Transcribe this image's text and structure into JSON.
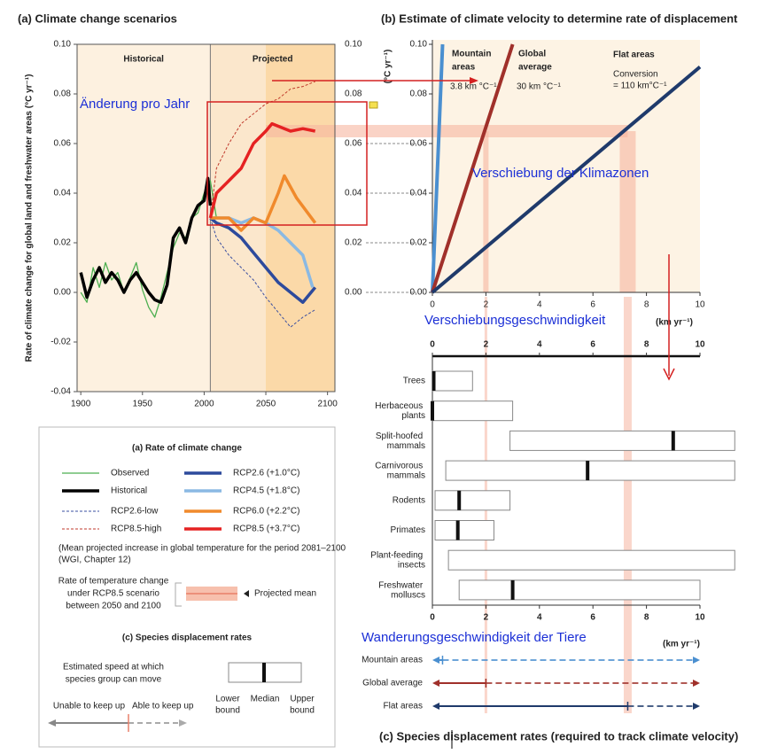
{
  "chart_data": [
    {
      "type": "line",
      "title": "(a) Climate change scenarios",
      "y_label": "Rate of climate change for global land and freshwater areas (°C yr⁻¹)",
      "y2_label": "(°C yr⁻¹)",
      "xlim": [
        1897,
        2106
      ],
      "xticks": [
        1900,
        1950,
        2000,
        2050,
        2100
      ],
      "ylim": [
        -0.04,
        0.1
      ],
      "yticks": [
        {
          "value": -0.04,
          "label": "-0.04"
        },
        {
          "value": -0.02,
          "label": "-0.02"
        },
        {
          "value": 0,
          "label": "0.00"
        },
        {
          "value": 0.02,
          "label": "0.02"
        },
        {
          "value": 0.04,
          "label": "0.04"
        },
        {
          "value": 0.06,
          "label": "0.06"
        },
        {
          "value": 0.08,
          "label": "0.08"
        },
        {
          "value": 0.1,
          "label": "0.10"
        }
      ],
      "y2ticks": [
        {
          "value": 0,
          "label": "0.00"
        },
        {
          "value": 0.02,
          "label": "0.02"
        },
        {
          "value": 0.04,
          "label": "0.04"
        },
        {
          "value": 0.06,
          "label": "0.06"
        },
        {
          "value": 0.08,
          "label": "0.08"
        },
        {
          "value": 0.1,
          "label": "0.10"
        }
      ],
      "periods": [
        {
          "label": "Historical",
          "range": [
            1897,
            2005
          ]
        },
        {
          "label": "Projected",
          "range": [
            2005,
            2106
          ]
        }
      ],
      "projected_period": [
        2050,
        2106
      ],
      "series": [
        {
          "name": "Observed",
          "color": "#4caf50",
          "style": "thin",
          "x": [
            1900,
            1905,
            1910,
            1915,
            1920,
            1925,
            1930,
            1935,
            1940,
            1945,
            1950,
            1955,
            1960,
            1965,
            1970,
            1975,
            1980,
            1985,
            1990,
            1995,
            2000,
            2005,
            2010
          ],
          "values": [
            0.0,
            -0.004,
            0.01,
            0.002,
            0.012,
            0.005,
            0.008,
            0.0,
            0.006,
            0.012,
            0.001,
            -0.006,
            -0.01,
            -0.002,
            0.008,
            0.018,
            0.024,
            0.022,
            0.03,
            0.032,
            0.04,
            0.045,
            0.03
          ]
        },
        {
          "name": "Historical",
          "color": "#000000",
          "style": "thick",
          "x": [
            1900,
            1905,
            1910,
            1915,
            1920,
            1925,
            1930,
            1935,
            1940,
            1945,
            1950,
            1955,
            1960,
            1965,
            1970,
            1975,
            1980,
            1985,
            1990,
            1995,
            2000,
            2003,
            2005
          ],
          "values": [
            0.008,
            -0.002,
            0.005,
            0.01,
            0.004,
            0.008,
            0.005,
            0.0,
            0.005,
            0.008,
            0.004,
            0.0,
            -0.003,
            -0.004,
            0.003,
            0.022,
            0.026,
            0.02,
            0.03,
            0.035,
            0.037,
            0.046,
            0.035
          ]
        },
        {
          "name": "RCP2.6-low",
          "color": "#3a4fa0",
          "style": "dashed",
          "x": [
            2005,
            2010,
            2020,
            2030,
            2040,
            2050,
            2060,
            2070,
            2080,
            2090
          ],
          "values": [
            0.03,
            0.022,
            0.015,
            0.01,
            0.005,
            -0.002,
            -0.008,
            -0.014,
            -0.01,
            -0.007
          ]
        },
        {
          "name": "RCP8.5-high",
          "color": "#c0392b",
          "style": "dashed",
          "x": [
            2005,
            2010,
            2020,
            2030,
            2040,
            2050,
            2060,
            2070,
            2080,
            2090
          ],
          "values": [
            0.03,
            0.05,
            0.06,
            0.068,
            0.072,
            0.076,
            0.078,
            0.082,
            0.083,
            0.085
          ]
        },
        {
          "name": "RCP2.6 (+1.0°C)",
          "color": "#2d4a9c",
          "style": "thick",
          "x": [
            2005,
            2010,
            2020,
            2030,
            2040,
            2050,
            2060,
            2070,
            2080,
            2090
          ],
          "values": [
            0.03,
            0.028,
            0.026,
            0.022,
            0.016,
            0.01,
            0.004,
            0.0,
            -0.004,
            0.002
          ]
        },
        {
          "name": "RCP4.5 (+1.8°C)",
          "color": "#8ab9e3",
          "style": "thick",
          "x": [
            2005,
            2010,
            2020,
            2030,
            2040,
            2050,
            2060,
            2070,
            2080,
            2088
          ],
          "values": [
            0.03,
            0.03,
            0.03,
            0.028,
            0.03,
            0.028,
            0.025,
            0.02,
            0.015,
            0.002
          ]
        },
        {
          "name": "RCP6.0 (+2.2°C)",
          "color": "#f08a2c",
          "style": "thick",
          "x": [
            2005,
            2010,
            2020,
            2030,
            2040,
            2050,
            2060,
            2065,
            2075,
            2090
          ],
          "values": [
            0.03,
            0.03,
            0.03,
            0.025,
            0.03,
            0.028,
            0.04,
            0.047,
            0.038,
            0.028
          ]
        },
        {
          "name": "RCP8.5 (+3.7°C)",
          "color": "#e52222",
          "style": "thick",
          "x": [
            2005,
            2010,
            2020,
            2030,
            2040,
            2050,
            2055,
            2070,
            2080,
            2090
          ],
          "values": [
            0.03,
            0.04,
            0.045,
            0.05,
            0.06,
            0.065,
            0.068,
            0.065,
            0.066,
            0.065
          ]
        }
      ]
    },
    {
      "type": "line",
      "title": "(b) Estimate of climate velocity to determine rate of displacement",
      "x_label": "(km yr⁻¹)",
      "xlim": [
        0,
        10
      ],
      "xticks": [
        0,
        2,
        4,
        6,
        8,
        10
      ],
      "ylim": [
        0,
        0.1
      ],
      "yticks": [
        {
          "value": 0,
          "label": "0.00"
        },
        {
          "value": 0.02,
          "label": "0.02"
        },
        {
          "value": 0.04,
          "label": "0.04"
        },
        {
          "value": 0.06,
          "label": "0.06"
        },
        {
          "value": 0.08,
          "label": "0.08"
        },
        {
          "value": 0.1,
          "label": "0.10"
        }
      ],
      "projected_mean": {
        "value": 0.065,
        "x": [
          2,
          7.3
        ]
      },
      "series": [
        {
          "name": "Mountain areas",
          "rate_label": "3.8 km °C⁻¹",
          "color": "#4a8fd0",
          "x": [
            0,
            0.38
          ],
          "values": [
            0,
            0.1
          ]
        },
        {
          "name": "Global average",
          "rate_label": "30 km °C⁻¹",
          "color": "#a0302a",
          "x": [
            0,
            3
          ],
          "values": [
            0,
            0.1
          ]
        },
        {
          "name": "Flat areas",
          "rate_label": [
            "Conversion",
            "= 110 km°C⁻¹"
          ],
          "color": "#1f3a6b",
          "x": [
            0,
            10
          ],
          "values": [
            0,
            0.0909
          ]
        }
      ]
    },
    {
      "type": "range",
      "title": "(c) Species displacement rates (required to track climate velocity)",
      "x_label": "(km yr⁻¹)",
      "xlim": [
        0,
        10
      ],
      "xticks": [
        0,
        2,
        4,
        6,
        8,
        10
      ],
      "categories": [
        "Trees",
        "Herbaceous plants",
        "Split-hoofed mammals",
        "Carnivorous mammals",
        "Rodents",
        "Primates",
        "Plant-feeding insects",
        "Freshwater molluscs"
      ],
      "lows": [
        0,
        0,
        2.9,
        0.5,
        0.1,
        0.1,
        0.6,
        1.0
      ],
      "highs": [
        1.5,
        3,
        11.3,
        11.3,
        2.9,
        2.3,
        11.3,
        10
      ],
      "medians": [
        0.05,
        0,
        9,
        5.8,
        1,
        0.95,
        null,
        3
      ],
      "velocity": {
        "categories": [
          "Mountain areas",
          "Global average",
          "Flat areas"
        ],
        "values": [
          0.38,
          2,
          7.3
        ]
      }
    }
  ],
  "legend": {
    "title": "(a) Rate of climate change",
    "note": [
      "(Mean projected increase in global temperature for the period 2081–2100",
      "(WGI, Chapter 12)"
    ],
    "band_label": [
      "Rate of temperature change",
      "under RCP8.5 scenario",
      "between 2050 and 2100"
    ],
    "band_name": "Projected mean",
    "c_title": "(c) Species displacement rates",
    "c_speed": [
      "Estimated speed at which",
      "species group can move"
    ],
    "lower": [
      "Lower",
      "bound"
    ],
    "median": "Median",
    "upper": [
      "Upper",
      "bound"
    ],
    "unable": "Unable to keep up",
    "able": "Able to keep up"
  },
  "annotations": [
    "Änderung pro Jahr",
    "Verschiebung der Klimazonen",
    "Verschiebungsgeschwindigkeit",
    "Wanderungsgeschwindigkeit der Tiere"
  ]
}
